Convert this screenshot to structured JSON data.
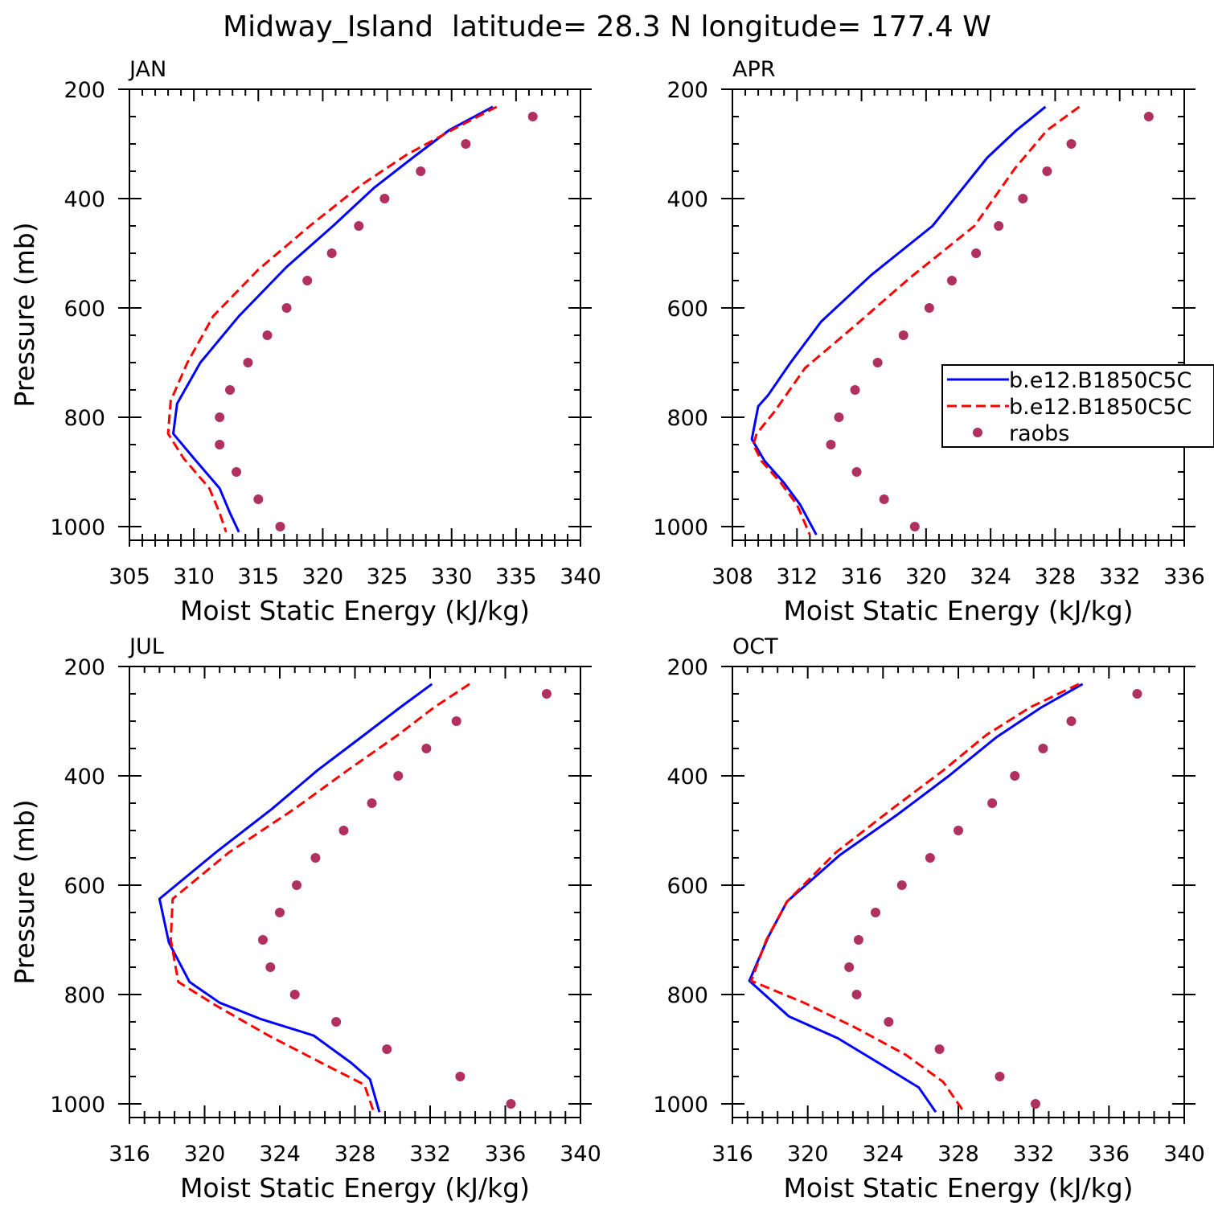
{
  "title": "Midway_Island  latitude= 28.3 N longitude= 177.4 W",
  "chart_data": [
    {
      "type": "line",
      "panel_label": "JAN",
      "xlabel": "Moist Static Energy (kJ/kg)",
      "ylabel": "Pressure (mb)",
      "xlim": [
        305,
        340
      ],
      "xticks": [
        "305",
        "310",
        "315",
        "320",
        "325",
        "330",
        "335",
        "340"
      ],
      "ylim": [
        200,
        1025
      ],
      "y_inverted": true,
      "yticks": [
        "200",
        "400",
        "600",
        "800",
        "1000"
      ],
      "series": [
        {
          "name": "",
          "style": "solid",
          "color": "#0000ff",
          "x": [
            333.2,
            329.8,
            327.0,
            324.0,
            320.8,
            317.2,
            313.5,
            310.5,
            308.7,
            308.4,
            310.0,
            312.0,
            312.8,
            313.5
          ],
          "y": [
            232,
            275,
            325,
            380,
            450,
            525,
            615,
            700,
            775,
            830,
            875,
            930,
            975,
            1010
          ]
        },
        {
          "name": "",
          "style": "dashed",
          "color": "#ff0000",
          "x": [
            333.5,
            330.0,
            326.5,
            323.0,
            319.0,
            315.0,
            311.5,
            309.5,
            308.2,
            308.0,
            309.2,
            311.2,
            312.0,
            312.5
          ],
          "y": [
            232,
            275,
            320,
            375,
            450,
            530,
            615,
            700,
            770,
            830,
            875,
            930,
            975,
            1010
          ]
        },
        {
          "name": "raobs",
          "style": "markers",
          "color": "#b03060",
          "x": [
            336.3,
            331.1,
            327.6,
            324.8,
            322.8,
            320.7,
            318.8,
            317.2,
            315.7,
            314.2,
            312.8,
            312.0,
            312.0,
            313.3,
            315.0,
            316.7
          ],
          "y": [
            250,
            300,
            350,
            400,
            450,
            500,
            550,
            600,
            650,
            700,
            750,
            800,
            850,
            900,
            950,
            1000
          ]
        }
      ]
    },
    {
      "type": "line",
      "panel_label": "APR",
      "xlabel": "Moist Static Energy (kJ/kg)",
      "xlim": [
        308,
        336
      ],
      "xticks": [
        "308",
        "312",
        "316",
        "320",
        "324",
        "328",
        "332",
        "336"
      ],
      "ylim": [
        200,
        1025
      ],
      "y_inverted": true,
      "yticks": [
        "200",
        "400",
        "600",
        "800",
        "1000"
      ],
      "legend": {
        "placement": "right",
        "entries": [
          {
            "label": "b.e12.B1850C5C",
            "style": "solid",
            "color": "#0000ff"
          },
          {
            "label": "b.e12.B1850C5C",
            "style": "dashed",
            "color": "#ff0000"
          },
          {
            "label": "raobs",
            "style": "markers",
            "color": "#b03060"
          }
        ]
      },
      "series": [
        {
          "name": "b.e12.B1850C5C",
          "style": "solid",
          "color": "#0000ff",
          "x": [
            327.4,
            325.6,
            323.8,
            320.4,
            316.6,
            313.5,
            311.6,
            310.2,
            309.6,
            309.2,
            310.0,
            311.2,
            312.2,
            313.2
          ],
          "y": [
            232,
            275,
            325,
            450,
            540,
            625,
            700,
            760,
            780,
            840,
            880,
            920,
            960,
            1015
          ]
        },
        {
          "name": "b.e12.B1850C5C",
          "style": "dashed",
          "color": "#ff0000",
          "x": [
            329.5,
            327.5,
            325.5,
            323.0,
            319.0,
            315.5,
            312.5,
            310.6,
            309.5,
            309.3,
            309.8,
            311.0,
            312.0,
            312.8
          ],
          "y": [
            232,
            275,
            345,
            450,
            545,
            635,
            710,
            790,
            830,
            850,
            880,
            920,
            960,
            1015
          ]
        },
        {
          "name": "raobs",
          "style": "markers",
          "color": "#b03060",
          "x": [
            333.8,
            329.0,
            327.5,
            326.0,
            324.5,
            323.1,
            321.6,
            320.2,
            318.6,
            317.0,
            315.6,
            314.6,
            314.1,
            315.7,
            317.4,
            319.3
          ],
          "y": [
            250,
            300,
            350,
            400,
            450,
            500,
            550,
            600,
            650,
            700,
            750,
            800,
            850,
            900,
            950,
            1000
          ]
        }
      ]
    },
    {
      "type": "line",
      "panel_label": "JUL",
      "xlabel": "Moist Static Energy (kJ/kg)",
      "ylabel": "Pressure (mb)",
      "xlim": [
        316,
        340
      ],
      "xticks": [
        "316",
        "320",
        "324",
        "328",
        "332",
        "336",
        "340"
      ],
      "ylim": [
        200,
        1025
      ],
      "y_inverted": true,
      "yticks": [
        "200",
        "400",
        "600",
        "800",
        "1000"
      ],
      "series": [
        {
          "name": "",
          "style": "solid",
          "color": "#0000ff",
          "x": [
            332.1,
            330.4,
            328.5,
            326.0,
            323.6,
            320.6,
            317.6,
            318.1,
            319.2,
            320.8,
            323.0,
            325.8,
            327.8,
            328.8,
            329.3
          ],
          "y": [
            232,
            275,
            325,
            390,
            460,
            540,
            625,
            705,
            777,
            815,
            845,
            875,
            925,
            955,
            1015
          ]
        },
        {
          "name": "",
          "style": "dashed",
          "color": "#ff0000",
          "x": [
            334.1,
            332.2,
            330.3,
            327.6,
            324.8,
            321.3,
            318.3,
            318.2,
            318.6,
            320.6,
            323.4,
            326.5,
            328.5,
            329.0
          ],
          "y": [
            232,
            275,
            325,
            390,
            460,
            540,
            625,
            700,
            777,
            820,
            875,
            930,
            965,
            1015
          ]
        },
        {
          "name": "raobs",
          "style": "markers",
          "color": "#b03060",
          "x": [
            338.2,
            333.4,
            331.8,
            330.3,
            328.9,
            327.4,
            325.9,
            324.9,
            324.0,
            323.1,
            323.5,
            324.8,
            327.0,
            329.7,
            333.6,
            336.3
          ],
          "y": [
            250,
            300,
            350,
            400,
            450,
            500,
            550,
            600,
            650,
            700,
            750,
            800,
            850,
            900,
            950,
            1000
          ]
        }
      ]
    },
    {
      "type": "line",
      "panel_label": "OCT",
      "xlabel": "Moist Static Energy (kJ/kg)",
      "xlim": [
        316,
        340
      ],
      "xticks": [
        "316",
        "320",
        "324",
        "328",
        "332",
        "336",
        "340"
      ],
      "ylim": [
        200,
        1025
      ],
      "y_inverted": true,
      "yticks": [
        "200",
        "400",
        "600",
        "800",
        "1000"
      ],
      "series": [
        {
          "name": "",
          "style": "solid",
          "color": "#0000ff",
          "x": [
            334.6,
            332.4,
            330.0,
            327.5,
            324.8,
            321.7,
            318.9,
            317.9,
            316.9,
            319.0,
            321.6,
            324.0,
            325.9,
            326.8
          ],
          "y": [
            232,
            275,
            330,
            400,
            470,
            545,
            630,
            695,
            775,
            840,
            880,
            930,
            970,
            1015
          ]
        },
        {
          "name": "",
          "style": "dashed",
          "color": "#ff0000",
          "x": [
            334.4,
            331.8,
            329.5,
            327.2,
            324.5,
            321.5,
            318.9,
            317.8,
            317.0,
            319.8,
            322.5,
            325.2,
            327.2,
            328.3
          ],
          "y": [
            232,
            275,
            325,
            390,
            460,
            540,
            630,
            700,
            775,
            815,
            860,
            910,
            960,
            1015
          ]
        },
        {
          "name": "raobs",
          "style": "markers",
          "color": "#b03060",
          "x": [
            337.5,
            334.0,
            332.5,
            331.0,
            329.8,
            328.0,
            326.5,
            325.0,
            323.6,
            322.7,
            322.2,
            322.6,
            324.3,
            327.0,
            330.2,
            332.1
          ],
          "y": [
            250,
            300,
            350,
            400,
            450,
            500,
            550,
            600,
            650,
            700,
            750,
            800,
            850,
            900,
            950,
            1000
          ]
        }
      ]
    }
  ]
}
